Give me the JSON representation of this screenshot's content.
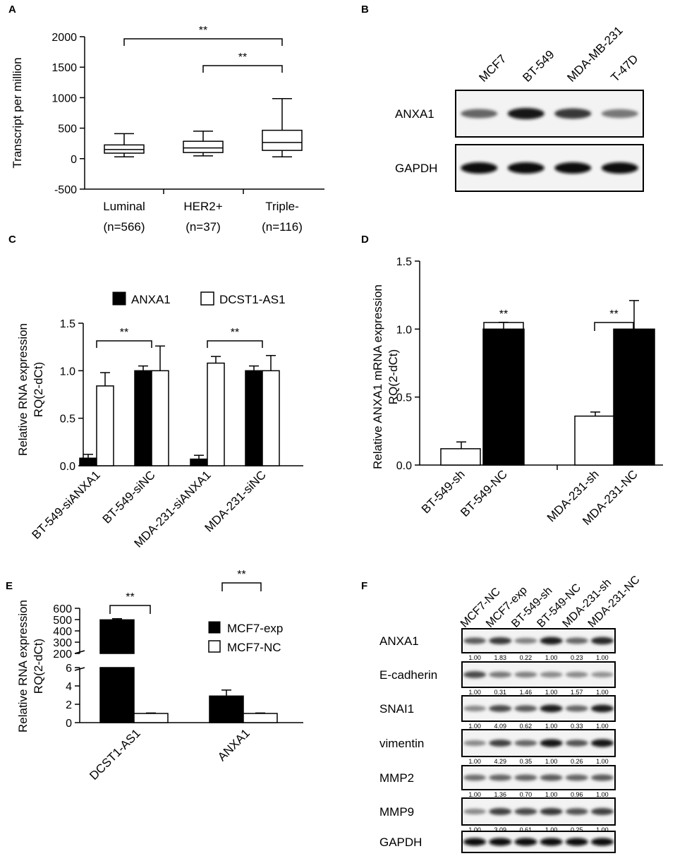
{
  "panels": {
    "a": "A",
    "b": "B",
    "c": "C",
    "d": "D",
    "e": "E",
    "f": "F"
  },
  "sig": "**",
  "chart_data": [
    {
      "panel": "A",
      "type": "box",
      "ylabel": "Transcript per million",
      "ylim": [
        -500,
        2000
      ],
      "yticks": [
        "2000",
        "1500",
        "1000",
        "500",
        "0",
        "-500"
      ],
      "categories": [
        "Luminal\n(n=566)",
        "HER2+\n(n=37)",
        "Triple-\n(n=116)"
      ],
      "category_lines": [
        [
          "Luminal",
          "(n=566)"
        ],
        [
          "HER2+",
          "(n=37)"
        ],
        [
          "Triple-",
          "(n=116)"
        ]
      ],
      "boxes": [
        {
          "min": 30,
          "q1": 90,
          "median": 150,
          "q3": 225,
          "max": 410
        },
        {
          "min": 45,
          "q1": 100,
          "median": 175,
          "q3": 285,
          "max": 450
        },
        {
          "min": 30,
          "q1": 135,
          "median": 265,
          "q3": 465,
          "max": 985
        }
      ],
      "significance": [
        {
          "from": 0,
          "to": 2,
          "label": "**"
        },
        {
          "from": 1,
          "to": 2,
          "label": "**"
        }
      ]
    },
    {
      "panel": "C",
      "type": "bar",
      "ylabel_lines": [
        "Relative RNA expression",
        "RQ(2-dCt)"
      ],
      "ylim": [
        0,
        1.5
      ],
      "yticks": [
        "1.5",
        "1.0",
        "0.5",
        "0.0"
      ],
      "categories": [
        "BT-549-siANXA1",
        "BT-549-siNC",
        "MDA-231-siANXA1",
        "MDA-231-siNC"
      ],
      "series": [
        {
          "name": "ANXA1",
          "values": [
            0.08,
            1.0,
            0.07,
            1.0
          ],
          "errors": [
            0.04,
            0.05,
            0.04,
            0.05
          ],
          "color": "#000000"
        },
        {
          "name": "DCST1-AS1",
          "values": [
            0.84,
            1.0,
            1.08,
            1.0
          ],
          "errors": [
            0.14,
            0.26,
            0.07,
            0.16
          ],
          "color": "#ffffff"
        }
      ],
      "legend": "top",
      "significance": [
        {
          "from": 0,
          "to": 1,
          "label": "**"
        },
        {
          "from": 2,
          "to": 3,
          "label": "**"
        }
      ]
    },
    {
      "panel": "D",
      "type": "bar",
      "ylabel_lines": [
        "Relative ANXA1 mRNA expression",
        "RQ(2-dCt)"
      ],
      "ylim": [
        0,
        1.5
      ],
      "yticks": [
        "1.5",
        "1.0",
        "0.5",
        "0.0"
      ],
      "categories": [
        "BT-549-sh",
        "BT-549-NC",
        "MDA-231-sh",
        "MDA-231-NC"
      ],
      "values": [
        0.12,
        1.0,
        0.36,
        1.0
      ],
      "errors": [
        0.05,
        0.05,
        0.03,
        0.21
      ],
      "colors": [
        "#ffffff",
        "#000000",
        "#ffffff",
        "#000000"
      ],
      "significance": [
        {
          "from": 0,
          "to": 1,
          "label": "**"
        },
        {
          "from": 2,
          "to": 3,
          "label": "**"
        }
      ]
    },
    {
      "panel": "E",
      "type": "bar",
      "ylabel_lines": [
        "Relative RNA expression",
        "RQ(2-dCt)"
      ],
      "axis_break": true,
      "upper_ylim": [
        200,
        600
      ],
      "upper_yticks": [
        "600",
        "500",
        "400",
        "300",
        "200"
      ],
      "lower_ylim": [
        0,
        6
      ],
      "lower_yticks": [
        "6",
        "4",
        "2",
        "0"
      ],
      "categories": [
        "DCST1-AS1",
        "ANXA1"
      ],
      "series": [
        {
          "name": "MCF7-exp",
          "values": [
            498,
            2.9
          ],
          "errors": [
            10,
            0.65
          ],
          "color": "#000000"
        },
        {
          "name": "MCF7-NC",
          "values": [
            1.0,
            1.0
          ],
          "errors": [
            0.05,
            0.05
          ],
          "color": "#ffffff"
        }
      ],
      "legend": "top-right",
      "significance": [
        {
          "category": 0,
          "label": "**"
        },
        {
          "category": 1,
          "label": "**"
        }
      ]
    }
  ],
  "blot_b": {
    "lanes": [
      "MCF7",
      "BT-549",
      "MDA-MB-231",
      "T-47D"
    ],
    "rows": [
      {
        "label": "ANXA1",
        "intensity": [
          0.55,
          1.0,
          0.8,
          0.45
        ]
      },
      {
        "label": "GAPDH",
        "intensity": [
          1.0,
          1.0,
          1.0,
          1.0
        ]
      }
    ]
  },
  "blot_f": {
    "lanes": [
      "MCF7-NC",
      "MCF7-exp",
      "BT-549-sh",
      "BT-549-NC",
      "MDA-231-sh",
      "MDA-231-NC"
    ],
    "rows": [
      {
        "label": "ANXA1",
        "quant": [
          "1.00",
          "1.83",
          "0.22",
          "1.00",
          "0.23",
          "1.00"
        ],
        "intensity": [
          0.6,
          0.8,
          0.4,
          0.95,
          0.55,
          0.9
        ]
      },
      {
        "label": "E-cadherin",
        "quant": [
          "1.00",
          "0.31",
          "1.46",
          "1.00",
          "1.57",
          "1.00"
        ],
        "intensity": [
          0.7,
          0.45,
          0.4,
          0.35,
          0.35,
          0.3
        ]
      },
      {
        "label": "SNAI1",
        "quant": [
          "1.00",
          "4.09",
          "0.62",
          "1.00",
          "0.33",
          "1.00"
        ],
        "intensity": [
          0.35,
          0.7,
          0.6,
          0.95,
          0.55,
          0.95
        ]
      },
      {
        "label": "vimentin",
        "quant": [
          "1.00",
          "4.29",
          "0.35",
          "1.00",
          "0.26",
          "1.00"
        ],
        "intensity": [
          0.35,
          0.75,
          0.55,
          1.0,
          0.65,
          1.0
        ]
      },
      {
        "label": "MMP2",
        "quant": [
          "1.00",
          "1.36",
          "0.70",
          "1.00",
          "0.96",
          "1.00"
        ],
        "intensity": [
          0.5,
          0.55,
          0.55,
          0.6,
          0.55,
          0.6
        ]
      },
      {
        "label": "MMP9",
        "quant": [
          "1.00",
          "3.09",
          "0.61",
          "1.00",
          "0.25",
          "1.00"
        ],
        "intensity": [
          0.35,
          0.75,
          0.7,
          0.8,
          0.65,
          0.75
        ]
      },
      {
        "label": "GAPDH",
        "quant": null,
        "intensity": [
          1.0,
          1.0,
          1.0,
          1.0,
          1.0,
          1.0
        ]
      }
    ]
  }
}
